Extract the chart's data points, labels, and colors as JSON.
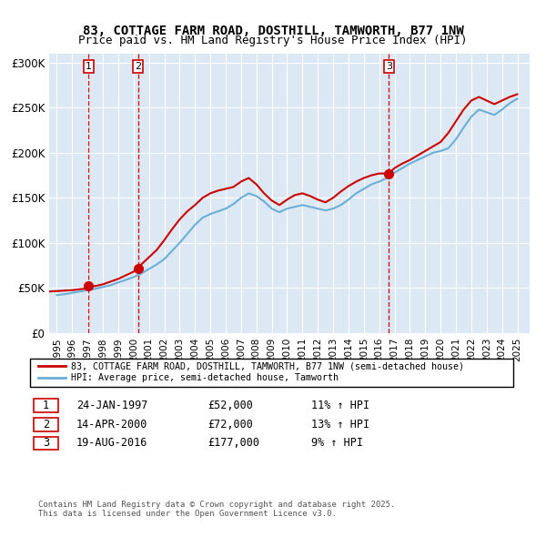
{
  "title_line1": "83, COTTAGE FARM ROAD, DOSTHILL, TAMWORTH, B77 1NW",
  "title_line2": "Price paid vs. HM Land Registry's House Price Index (HPI)",
  "ylabel_ticks": [
    "£0",
    "£50K",
    "£100K",
    "£150K",
    "£200K",
    "£250K",
    "£300K"
  ],
  "ytick_vals": [
    0,
    50000,
    100000,
    150000,
    200000,
    250000,
    300000
  ],
  "ylim": [
    0,
    310000
  ],
  "xlim_start": 1994.5,
  "xlim_end": 2025.8,
  "background_color": "#dce9f5",
  "plot_bg_color": "#dce9f5",
  "red_line_color": "#cc0000",
  "blue_line_color": "#6baed6",
  "marker_color": "#cc0000",
  "vline_color": "#cc0000",
  "transaction_dates": [
    1997.07,
    2000.29,
    2016.63
  ],
  "transaction_prices": [
    52000,
    72000,
    177000
  ],
  "transaction_labels": [
    "1",
    "2",
    "3"
  ],
  "legend_line1": "83, COTTAGE FARM ROAD, DOSTHILL, TAMWORTH, B77 1NW (semi-detached house)",
  "legend_line2": "HPI: Average price, semi-detached house, Tamworth",
  "table_rows": [
    [
      "1",
      "24-JAN-1997",
      "£52,000",
      "11% ↑ HPI"
    ],
    [
      "2",
      "14-APR-2000",
      "£72,000",
      "13% ↑ HPI"
    ],
    [
      "3",
      "19-AUG-2016",
      "£177,000",
      "9% ↑ HPI"
    ]
  ],
  "footer_text": "Contains HM Land Registry data © Crown copyright and database right 2025.\nThis data is licensed under the Open Government Licence v3.0.",
  "hpi_years": [
    1995,
    1995.5,
    1996,
    1996.5,
    1997,
    1997.5,
    1998,
    1998.5,
    1999,
    1999.5,
    2000,
    2000.5,
    2001,
    2001.5,
    2002,
    2002.5,
    2003,
    2003.5,
    2004,
    2004.5,
    2005,
    2005.5,
    2006,
    2006.5,
    2007,
    2007.5,
    2008,
    2008.5,
    2009,
    2009.5,
    2010,
    2010.5,
    2011,
    2011.5,
    2012,
    2012.5,
    2013,
    2013.5,
    2014,
    2014.5,
    2015,
    2015.5,
    2016,
    2016.5,
    2017,
    2017.5,
    2018,
    2018.5,
    2019,
    2019.5,
    2020,
    2020.5,
    2021,
    2021.5,
    2022,
    2022.5,
    2023,
    2023.5,
    2024,
    2024.5,
    2025
  ],
  "hpi_values": [
    42000,
    43000,
    44500,
    46000,
    47500,
    49000,
    51000,
    53000,
    56000,
    59000,
    62000,
    66000,
    71000,
    76000,
    82000,
    91000,
    100000,
    110000,
    120000,
    128000,
    132000,
    135000,
    138000,
    143000,
    150000,
    155000,
    152000,
    146000,
    138000,
    134000,
    138000,
    140000,
    142000,
    140000,
    138000,
    136000,
    138000,
    142000,
    148000,
    155000,
    160000,
    165000,
    168000,
    172000,
    178000,
    183000,
    188000,
    192000,
    196000,
    200000,
    202000,
    205000,
    215000,
    228000,
    240000,
    248000,
    245000,
    242000,
    248000,
    255000,
    260000
  ],
  "price_years": [
    1994.5,
    1995,
    1995.5,
    1996,
    1996.5,
    1997,
    1997.07,
    1997.5,
    1998,
    1998.5,
    1999,
    1999.5,
    2000,
    2000.29,
    2000.5,
    2001,
    2001.5,
    2002,
    2002.5,
    2003,
    2003.5,
    2004,
    2004.5,
    2005,
    2005.5,
    2006,
    2006.5,
    2007,
    2007.5,
    2008,
    2008.5,
    2009,
    2009.5,
    2010,
    2010.5,
    2011,
    2011.5,
    2012,
    2012.5,
    2013,
    2013.5,
    2014,
    2014.5,
    2015,
    2015.5,
    2016,
    2016.63,
    2017,
    2017.5,
    2018,
    2018.5,
    2019,
    2019.5,
    2020,
    2020.5,
    2021,
    2021.5,
    2022,
    2022.5,
    2023,
    2023.5,
    2024,
    2024.5,
    2025
  ],
  "price_values": [
    46000,
    46500,
    47000,
    47500,
    48500,
    49500,
    52000,
    52000,
    54000,
    57000,
    60000,
    64000,
    68000,
    72000,
    76000,
    84000,
    92000,
    103000,
    115000,
    126000,
    135000,
    142000,
    150000,
    155000,
    158000,
    160000,
    162000,
    168000,
    172000,
    165000,
    155000,
    147000,
    142000,
    148000,
    153000,
    155000,
    152000,
    148000,
    145000,
    150000,
    157000,
    163000,
    168000,
    172000,
    175000,
    177000,
    177000,
    183000,
    188000,
    192000,
    197000,
    202000,
    207000,
    212000,
    222000,
    235000,
    248000,
    258000,
    262000,
    258000,
    254000,
    258000,
    262000,
    265000
  ]
}
